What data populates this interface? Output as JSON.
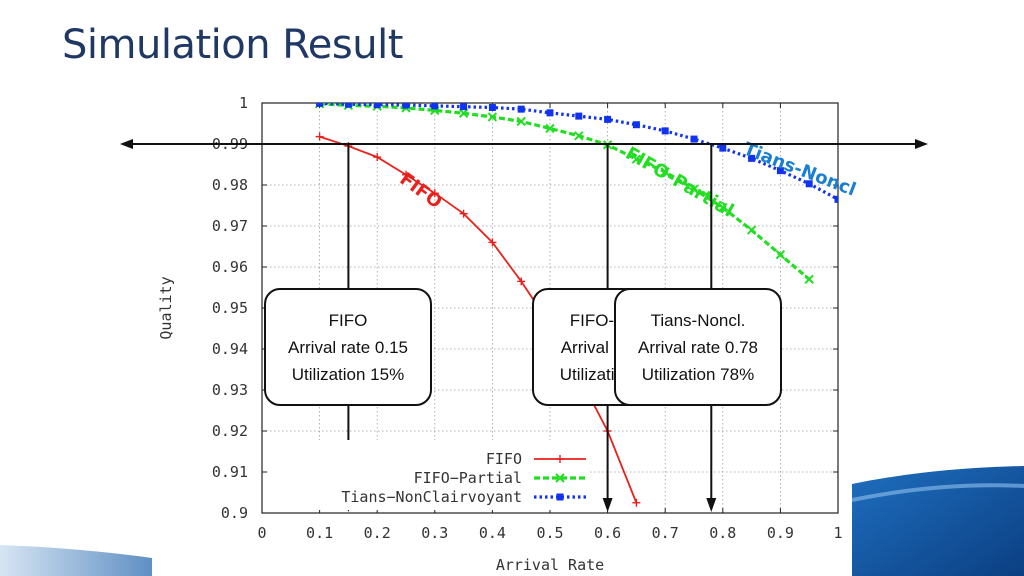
{
  "slide": {
    "title": "Simulation Result"
  },
  "chart_data": {
    "type": "line",
    "xlabel": "Arrival Rate",
    "ylabel": "Quality",
    "xlim": [
      0,
      1
    ],
    "ylim": [
      0.9,
      1
    ],
    "x_ticks": [
      "0",
      "0.1",
      "0.2",
      "0.3",
      "0.4",
      "0.5",
      "0.6",
      "0.7",
      "0.8",
      "0.9",
      "1"
    ],
    "y_ticks": [
      "0.9",
      "0.91",
      "0.92",
      "0.93",
      "0.94",
      "0.95",
      "0.96",
      "0.97",
      "0.98",
      "0.99",
      "1"
    ],
    "grid": true,
    "legend_position": "bottom-right",
    "series": [
      {
        "name": "FIFO",
        "color": "#e8211c",
        "marker": "plus",
        "x": [
          0.1,
          0.15,
          0.2,
          0.25,
          0.3,
          0.35,
          0.4,
          0.45,
          0.5,
          0.55,
          0.6,
          0.65
        ],
        "y": [
          0.9918,
          0.9895,
          0.9868,
          0.9825,
          0.978,
          0.973,
          0.966,
          0.9565,
          0.946,
          0.9335,
          0.92,
          0.9025
        ]
      },
      {
        "name": "FIFO−Partial",
        "color": "#22dd22",
        "marker": "x",
        "x": [
          0.1,
          0.15,
          0.2,
          0.25,
          0.3,
          0.35,
          0.4,
          0.45,
          0.5,
          0.55,
          0.6,
          0.65,
          0.7,
          0.75,
          0.8,
          0.85,
          0.9,
          0.95
        ],
        "y": [
          0.9998,
          0.9994,
          0.9992,
          0.9988,
          0.9982,
          0.9975,
          0.9966,
          0.9955,
          0.9938,
          0.992,
          0.9898,
          0.9863,
          0.9832,
          0.979,
          0.9745,
          0.969,
          0.963,
          0.957
        ]
      },
      {
        "name": "Tians−NonClairvoyant",
        "color": "#1133ee",
        "marker": "square",
        "x": [
          0.1,
          0.15,
          0.2,
          0.25,
          0.3,
          0.35,
          0.4,
          0.45,
          0.5,
          0.55,
          0.6,
          0.65,
          0.7,
          0.75,
          0.8,
          0.85,
          0.9,
          0.95,
          1.0
        ],
        "y": [
          0.9999,
          0.9997,
          0.9996,
          0.9995,
          0.9993,
          0.9991,
          0.9989,
          0.9985,
          0.9976,
          0.9968,
          0.996,
          0.9947,
          0.9932,
          0.9912,
          0.989,
          0.9865,
          0.9835,
          0.9803,
          0.9765
        ]
      }
    ],
    "reference_line": {
      "y": 0.99
    },
    "markers": [
      {
        "x": 0.15,
        "color": "#111111"
      },
      {
        "x": 0.6,
        "color": "#111111"
      },
      {
        "x": 0.78,
        "color": "#111111"
      }
    ],
    "annotations": [
      {
        "text": "FIFO",
        "color": "#e8211c",
        "x": 0.27,
        "y": 0.9775,
        "angle": 36
      },
      {
        "text": "FIFO-Partial",
        "color": "#22dd22",
        "x": 0.72,
        "y": 0.9795,
        "angle": 30
      },
      {
        "text": "Tians-Noncl",
        "color": "#1a7fd0",
        "x": 0.93,
        "y": 0.9825,
        "angle": 21
      }
    ]
  },
  "callouts": [
    {
      "title": "FIFO",
      "rate": "Arrival rate 0.15",
      "util": "Utilization 15%"
    },
    {
      "title": "FIFO-Partial",
      "rate": "Arrival rate 0.6",
      "util": "Utilization 60%"
    },
    {
      "title": "Tians-Noncl.",
      "rate": "Arrival rate 0.78",
      "util": "Utilization 78%"
    }
  ]
}
